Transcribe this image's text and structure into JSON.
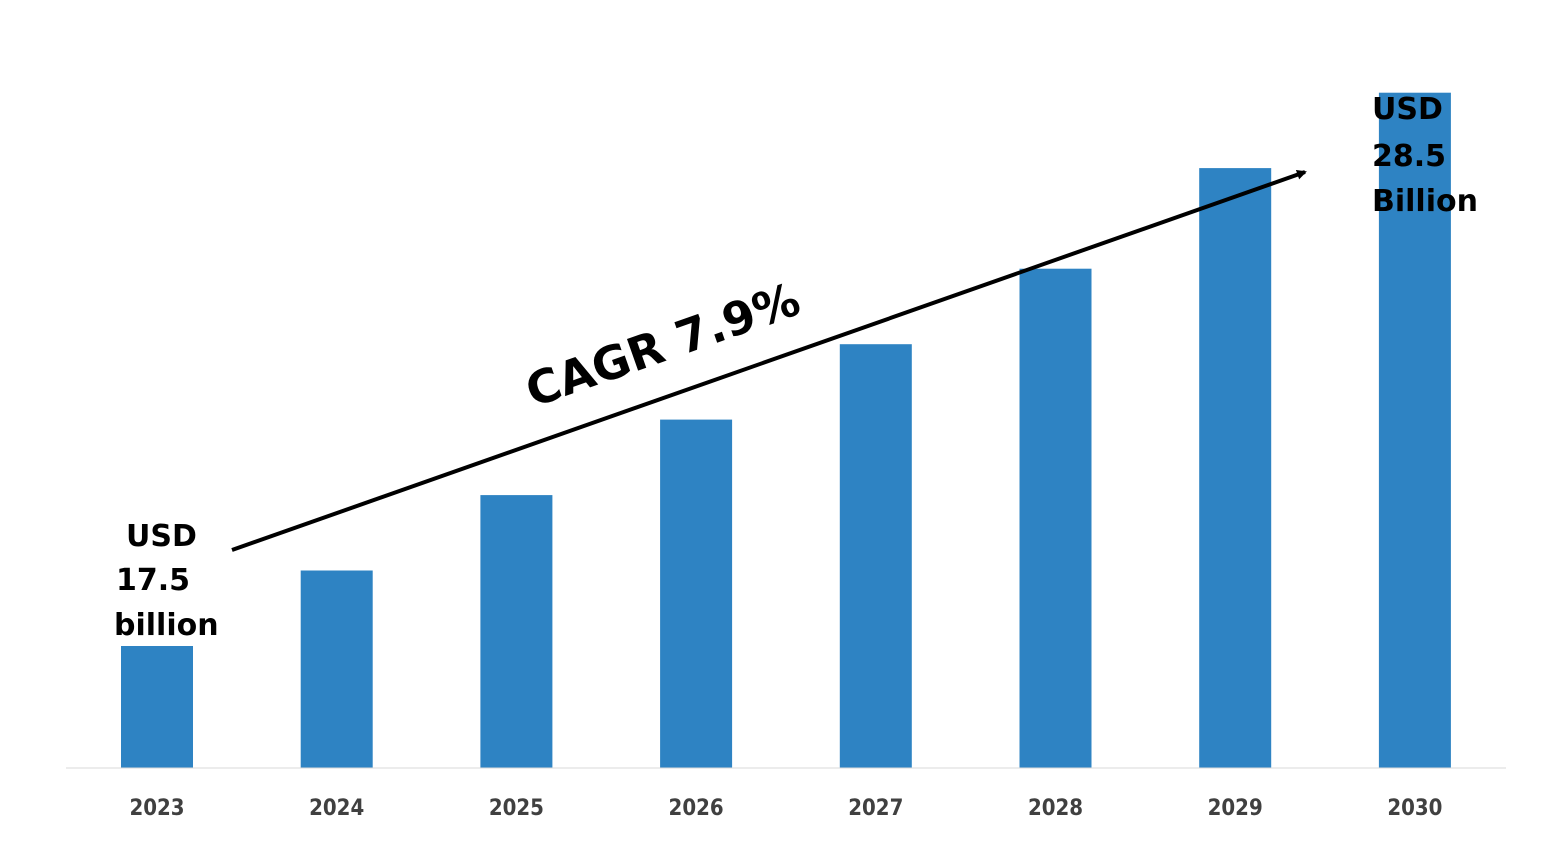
{
  "chart_data": {
    "type": "bar",
    "categories": [
      "2023",
      "2024",
      "2025",
      "2026",
      "2027",
      "2028",
      "2029",
      "2030"
    ],
    "values": [
      17.5,
      19.0,
      20.5,
      22.0,
      23.5,
      25.0,
      27.0,
      28.5
    ],
    "bar_color": "#2E83C3",
    "axis_color": "#D9D9D9",
    "grid": false,
    "legend": "none",
    "annotations": {
      "start_label": [
        "USD",
        "17.5",
        "billion"
      ],
      "end_label": [
        "USD",
        "28.5",
        "Billion"
      ],
      "cagr": "CAGR 7.9%"
    }
  }
}
